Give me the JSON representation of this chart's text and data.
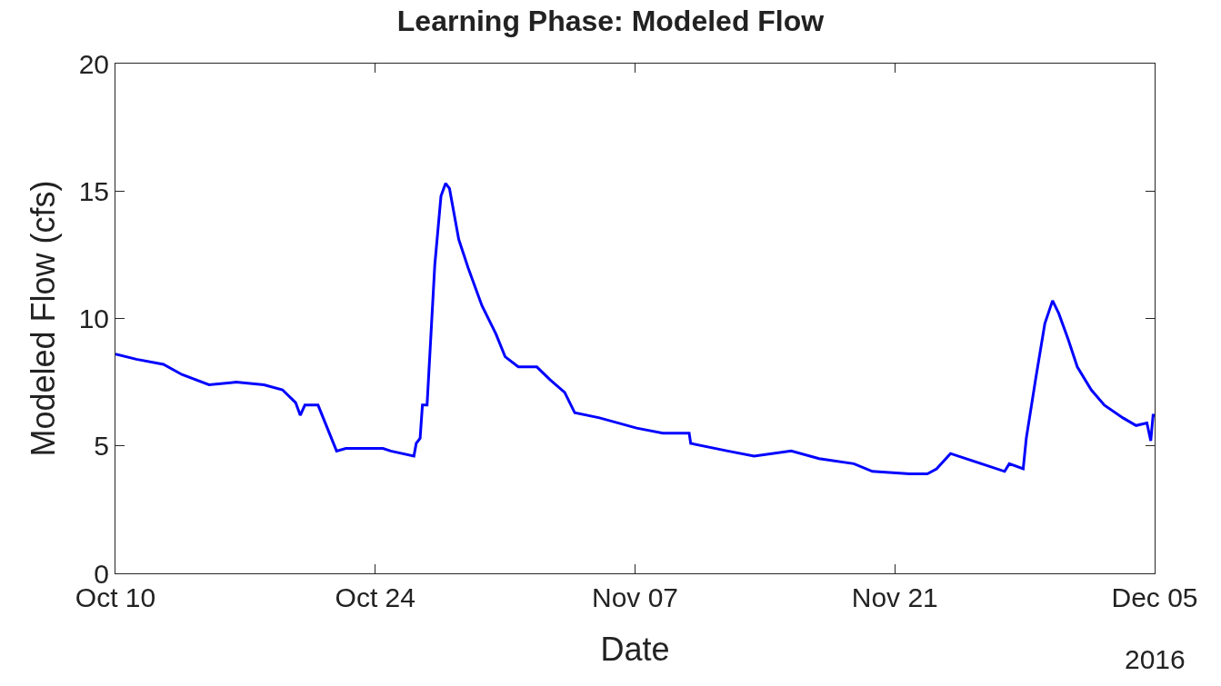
{
  "chart_data": {
    "type": "line",
    "title": "Learning Phase: Modeled Flow",
    "xlabel": "Date",
    "ylabel": "Modeled Flow (cfs)",
    "annotations": [
      "2016"
    ],
    "x": [
      "2016-10-10T00:00",
      "2016-10-11T03:00",
      "2016-10-12T14:00",
      "2016-10-13T14:00",
      "2016-10-15T01:00",
      "2016-10-16T12:00",
      "2016-10-18T00:00",
      "2016-10-19T00:00",
      "2016-10-19T17:00",
      "2016-10-19T23:00",
      "2016-10-20T05:00",
      "2016-10-20T22:00",
      "2016-10-21T22:00",
      "2016-10-22T10:00",
      "2016-10-24T10:00",
      "2016-10-24T20:00",
      "2016-10-26T02:00",
      "2016-10-26T05:00",
      "2016-10-26T10:00",
      "2016-10-26T13:00",
      "2016-10-26T19:00",
      "2016-10-27T05:00",
      "2016-10-27T13:00",
      "2016-10-27T19:00",
      "2016-10-28T00:00",
      "2016-10-28T12:00",
      "2016-10-29T00:00",
      "2016-10-29T18:00",
      "2016-10-30T12:00",
      "2016-10-31T00:00",
      "2016-10-31T17:00",
      "2016-11-01T17:00",
      "2016-11-02T10:00",
      "2016-11-03T05:00",
      "2016-11-03T18:00",
      "2016-11-05T02:00",
      "2016-11-07T02:00",
      "2016-11-08T12:00",
      "2016-11-09T22:00",
      "2016-11-10T00:00",
      "2016-11-12T00:00",
      "2016-11-13T10:00",
      "2016-11-15T10:00",
      "2016-11-16T22:00",
      "2016-11-18T19:00",
      "2016-11-19T19:00",
      "2016-11-21T19:00",
      "2016-11-22T18:00",
      "2016-11-23T06:00",
      "2016-11-24T00:00",
      "2016-11-26T22:00",
      "2016-11-27T04:00",
      "2016-11-27T22:00",
      "2016-11-28T02:00",
      "2016-11-28T14:00",
      "2016-11-29T02:00",
      "2016-11-29T12:00",
      "2016-11-29T20:00",
      "2016-11-30T08:00",
      "2016-11-30T20:00",
      "2016-12-01T14:00",
      "2016-12-02T07:00",
      "2016-12-03T07:00",
      "2016-12-04T00:00",
      "2016-12-04T14:00",
      "2016-12-04T19:00",
      "2016-12-04T22:00",
      "2016-12-05T00:00"
    ],
    "series": [
      {
        "color": "#0000ff",
        "values": [
          8.6,
          8.4,
          8.2,
          7.8,
          7.4,
          7.5,
          7.4,
          7.2,
          6.7,
          6.2,
          6.6,
          6.6,
          4.8,
          4.9,
          4.9,
          4.8,
          4.6,
          5.1,
          5.3,
          6.6,
          6.6,
          12.1,
          14.8,
          15.3,
          15.1,
          13.1,
          12.0,
          10.5,
          9.4,
          8.5,
          8.1,
          8.1,
          7.6,
          7.1,
          6.3,
          6.1,
          5.7,
          5.5,
          5.5,
          5.1,
          4.8,
          4.6,
          4.8,
          4.5,
          4.3,
          4.0,
          3.9,
          3.9,
          4.1,
          4.7,
          4.0,
          4.3,
          4.1,
          5.3,
          7.6,
          9.8,
          10.7,
          10.2,
          9.2,
          8.1,
          7.2,
          6.6,
          6.1,
          5.8,
          5.9,
          5.2,
          6.2,
          6.2
        ]
      }
    ],
    "xlim": [
      "2016-10-10",
      "2016-12-05"
    ],
    "xticks": [
      {
        "value": "2016-10-10",
        "label": "Oct 10"
      },
      {
        "value": "2016-10-24",
        "label": "Oct 24"
      },
      {
        "value": "2016-11-07",
        "label": "Nov 07"
      },
      {
        "value": "2016-11-21",
        "label": "Nov 21"
      },
      {
        "value": "2016-12-05",
        "label": "Dec 05"
      }
    ],
    "ylim": [
      0,
      20
    ],
    "yticks": [
      0,
      5,
      10,
      15,
      20
    ],
    "grid": false,
    "marker": "none",
    "line_style": "solid"
  }
}
